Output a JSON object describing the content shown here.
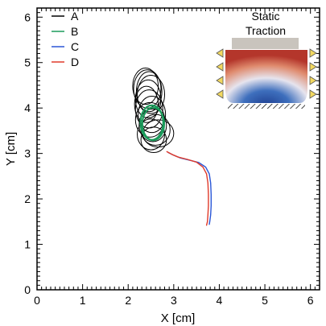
{
  "chart_data": {
    "type": "line",
    "xlabel": "X [cm]",
    "ylabel": "Y [cm]",
    "xlim": [
      0,
      6.2
    ],
    "ylim": [
      0,
      6.2
    ],
    "xticks": [
      "0",
      "1",
      "2",
      "3",
      "4",
      "5",
      "6"
    ],
    "yticks": [
      "0",
      "1",
      "2",
      "3",
      "4",
      "5",
      "6"
    ],
    "grid": false,
    "legend_position": "top-left",
    "series": [
      {
        "name": "A",
        "color": "#000000",
        "kind": "ellipse-loops",
        "loops": [
          {
            "cx": 2.38,
            "cy": 4.48,
            "rx": 0.28,
            "ry": 0.4
          },
          {
            "cx": 2.42,
            "cy": 4.42,
            "rx": 0.3,
            "ry": 0.42
          },
          {
            "cx": 2.46,
            "cy": 4.36,
            "rx": 0.28,
            "ry": 0.44
          },
          {
            "cx": 2.5,
            "cy": 4.3,
            "rx": 0.3,
            "ry": 0.42
          },
          {
            "cx": 2.44,
            "cy": 4.2,
            "rx": 0.28,
            "ry": 0.42
          },
          {
            "cx": 2.4,
            "cy": 4.08,
            "rx": 0.26,
            "ry": 0.4
          },
          {
            "cx": 2.46,
            "cy": 3.98,
            "rx": 0.3,
            "ry": 0.42
          },
          {
            "cx": 2.52,
            "cy": 3.86,
            "rx": 0.3,
            "ry": 0.4
          },
          {
            "cx": 2.48,
            "cy": 3.74,
            "rx": 0.32,
            "ry": 0.38
          },
          {
            "cx": 2.54,
            "cy": 3.62,
            "rx": 0.3,
            "ry": 0.36
          },
          {
            "cx": 2.6,
            "cy": 3.52,
            "rx": 0.32,
            "ry": 0.34
          },
          {
            "cx": 2.5,
            "cy": 3.42,
            "rx": 0.3,
            "ry": 0.34
          },
          {
            "cx": 2.66,
            "cy": 3.44,
            "rx": 0.34,
            "ry": 0.3
          },
          {
            "cx": 2.56,
            "cy": 3.3,
            "rx": 0.28,
            "ry": 0.28
          }
        ]
      },
      {
        "name": "B",
        "color": "#1a9a5a",
        "kind": "ellipse-loops",
        "loops": [
          {
            "cx": 2.52,
            "cy": 3.68,
            "rx": 0.25,
            "ry": 0.38
          },
          {
            "cx": 2.55,
            "cy": 3.65,
            "rx": 0.24,
            "ry": 0.36
          }
        ]
      },
      {
        "name": "C",
        "color": "#2a56d6",
        "kind": "path",
        "x": [
          2.88,
          3.0,
          3.15,
          3.35,
          3.55,
          3.7,
          3.78,
          3.81,
          3.82,
          3.82,
          3.81,
          3.79,
          3.78
        ],
        "y": [
          3.02,
          2.96,
          2.9,
          2.85,
          2.8,
          2.7,
          2.55,
          2.35,
          2.1,
          1.85,
          1.65,
          1.5,
          1.44
        ]
      },
      {
        "name": "D",
        "color": "#e03a2a",
        "kind": "path",
        "x": [
          2.85,
          2.96,
          3.1,
          3.3,
          3.5,
          3.64,
          3.72,
          3.75,
          3.76,
          3.76,
          3.75,
          3.74,
          3.72
        ],
        "y": [
          3.04,
          2.98,
          2.92,
          2.87,
          2.81,
          2.7,
          2.55,
          2.35,
          2.1,
          1.85,
          1.65,
          1.5,
          1.42
        ]
      }
    ],
    "inset": {
      "title_line1": "Static",
      "title_line2": "Traction",
      "colors": {
        "top": "#b93a2e",
        "mid": "#e8e6ef",
        "bottom": "#24479a",
        "platen": "#c9c4bd",
        "arrow": "#f2d860"
      }
    }
  }
}
